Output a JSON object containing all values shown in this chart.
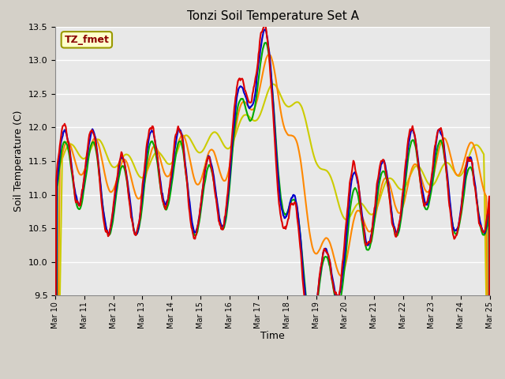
{
  "title": "Tonzi Soil Temperature Set A",
  "xlabel": "Time",
  "ylabel": "Soil Temperature (C)",
  "ylim": [
    9.5,
    13.5
  ],
  "annotation_text": "TZ_fmet",
  "annotation_color": "#8b0000",
  "annotation_bg": "#ffffcc",
  "annotation_edge": "#999900",
  "line_colors": {
    "2cm": "#dd0000",
    "4cm": "#0000cc",
    "8cm": "#00aa00",
    "16cm": "#ff8800",
    "32cm": "#cccc00"
  },
  "line_width": 1.5,
  "x_tick_labels": [
    "Mar 10",
    "Mar 11",
    "Mar 12",
    "Mar 13",
    "Mar 14",
    "Mar 15",
    "Mar 16",
    "Mar 17",
    "Mar 18",
    "Mar 19",
    "Mar 20",
    "Mar 21",
    "Mar 22",
    "Mar 23",
    "Mar 24",
    "Mar 25"
  ],
  "bg_color": "#e8e8e8",
  "grid_color": "#ffffff",
  "figsize": [
    6.4,
    4.8
  ],
  "dpi": 100
}
